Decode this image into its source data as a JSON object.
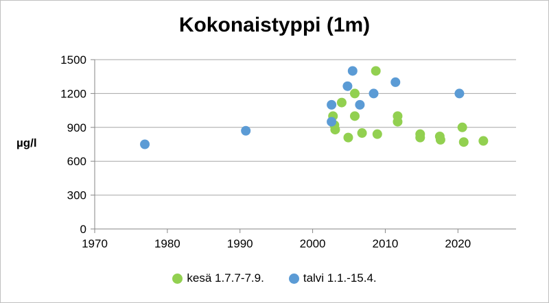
{
  "chart_data": {
    "type": "scatter",
    "title": "Kokonaistyppi (1m)",
    "ylabel": "µg/l",
    "xlabel": "",
    "xlim": [
      1970,
      2028
    ],
    "ylim": [
      0,
      1500
    ],
    "x_ticks": [
      "1970",
      "1980",
      "1990",
      "2000",
      "2010",
      "2020"
    ],
    "y_ticks": [
      "0",
      "300",
      "600",
      "900",
      "1200",
      "1500"
    ],
    "grid": "horizontal",
    "legend_position": "bottom",
    "series": [
      {
        "name": "kesä 1.7.7-7.9.",
        "color": "#92d050",
        "points": [
          [
            2002.8,
            1000
          ],
          [
            2003.0,
            920
          ],
          [
            2003.1,
            880
          ],
          [
            2004.0,
            1120
          ],
          [
            2004.9,
            810
          ],
          [
            2005.8,
            1200
          ],
          [
            2005.8,
            1000
          ],
          [
            2006.8,
            850
          ],
          [
            2008.7,
            1400
          ],
          [
            2008.9,
            840
          ],
          [
            2011.7,
            1000
          ],
          [
            2011.7,
            950
          ],
          [
            2014.8,
            840
          ],
          [
            2014.8,
            810
          ],
          [
            2017.5,
            820
          ],
          [
            2017.6,
            790
          ],
          [
            2020.6,
            900
          ],
          [
            2020.8,
            770
          ],
          [
            2023.5,
            780
          ]
        ]
      },
      {
        "name": "talvi 1.1.-15.4.",
        "color": "#5b9bd5",
        "points": [
          [
            1976.9,
            750
          ],
          [
            1990.8,
            870
          ],
          [
            2002.6,
            1100
          ],
          [
            2002.6,
            950
          ],
          [
            2004.8,
            1265
          ],
          [
            2005.5,
            1400
          ],
          [
            2006.5,
            1100
          ],
          [
            2008.4,
            1200
          ],
          [
            2011.4,
            1300
          ],
          [
            2020.2,
            1200
          ]
        ]
      }
    ]
  }
}
